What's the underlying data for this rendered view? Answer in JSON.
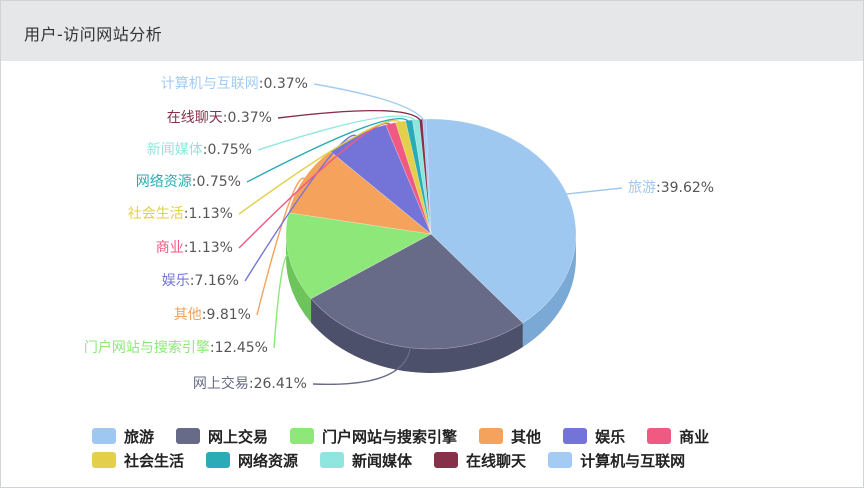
{
  "header": {
    "title": "用户-访问网站分析"
  },
  "chart_data": {
    "type": "pie",
    "title": "",
    "slices": [
      {
        "name": "旅游",
        "value": 39.62,
        "label": "旅游:39.62%",
        "color": "#9ec8f0",
        "side": "#7aa9d6"
      },
      {
        "name": "网上交易",
        "value": 26.41,
        "label": "网上交易:26.41%",
        "color": "#676b87",
        "side": "#4c506a"
      },
      {
        "name": "门户网站与搜索引擎",
        "value": 12.45,
        "label": "门户网站与搜索引擎:12.45%",
        "color": "#8de879",
        "side": "#6cc45b"
      },
      {
        "name": "其他",
        "value": 9.81,
        "label": "其他:9.81%",
        "color": "#f5a25c",
        "side": "#d88440"
      },
      {
        "name": "娱乐",
        "value": 7.16,
        "label": "娱乐:7.16%",
        "color": "#7474d8",
        "side": "#5656b5"
      },
      {
        "name": "商业",
        "value": 1.13,
        "label": "商业:1.13%",
        "color": "#f05a82",
        "side": "#c93e64"
      },
      {
        "name": "社会生活",
        "value": 1.13,
        "label": "社会生活:1.13%",
        "color": "#e3cf4a",
        "side": "#bfab2e"
      },
      {
        "name": "网络资源",
        "value": 0.75,
        "label": "网络资源:0.75%",
        "color": "#2aabb8",
        "side": "#1b8893"
      },
      {
        "name": "新闻媒体",
        "value": 0.75,
        "label": "新闻媒体:0.75%",
        "color": "#8fe6de",
        "side": "#6cc4bc"
      },
      {
        "name": "在线聊天",
        "value": 0.37,
        "label": "在线聊天:0.37%",
        "color": "#86304a",
        "side": "#621e33"
      },
      {
        "name": "计算机与互联网",
        "value": 0.37,
        "label": "计算机与互联网:0.37%",
        "color": "#a4cbf3",
        "side": "#80a9d8"
      }
    ],
    "legend_position": "bottom"
  }
}
